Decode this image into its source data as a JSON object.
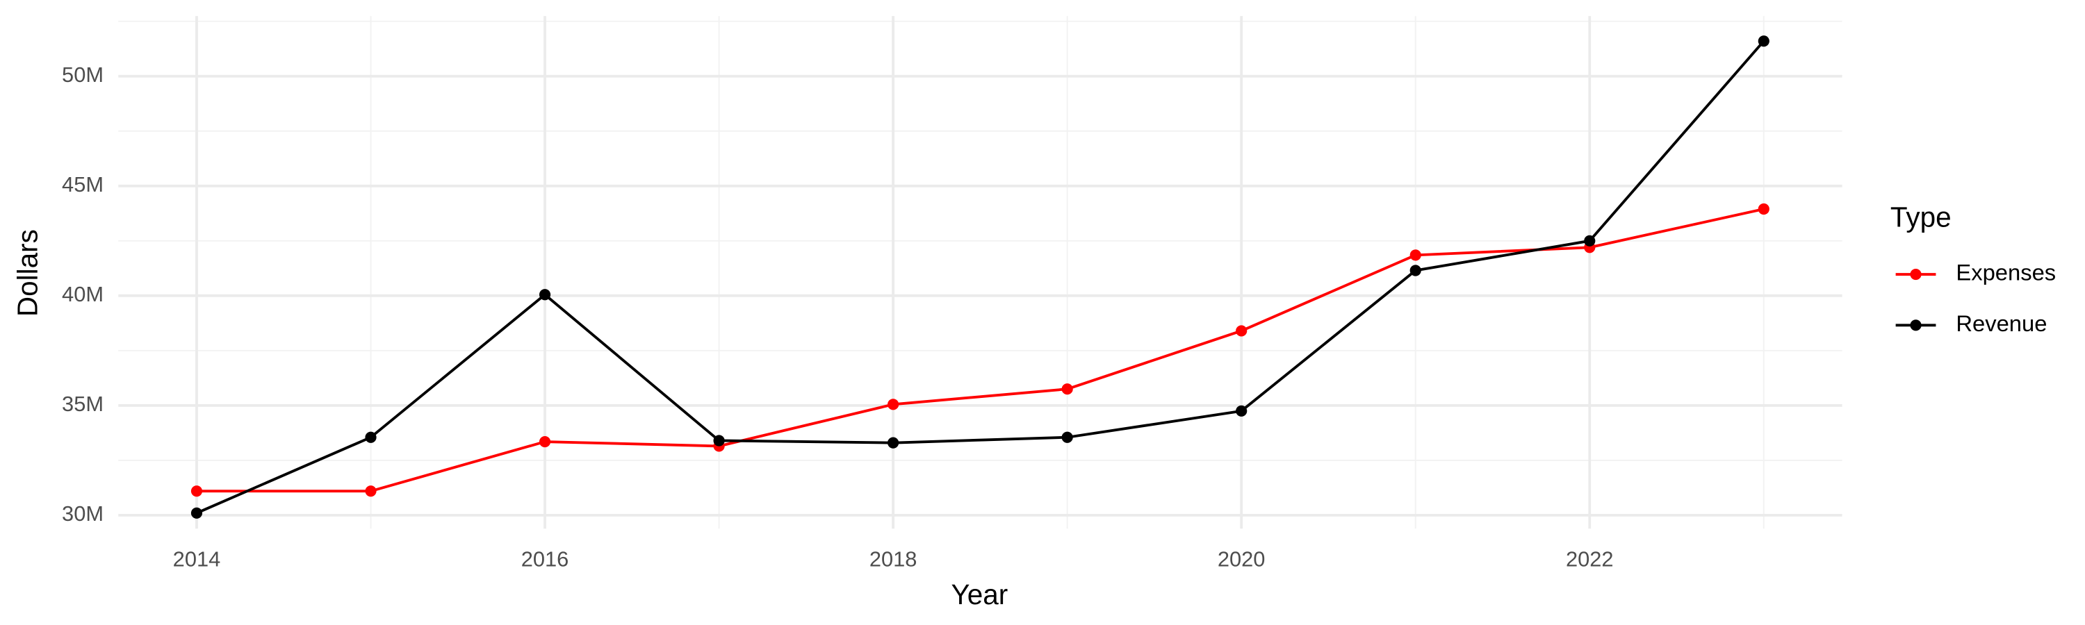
{
  "chart_data": {
    "type": "line",
    "x_label": "Year",
    "y_label": "Dollars",
    "legend_title": "Type",
    "legend_position": "right",
    "grid": true,
    "x": [
      2014,
      2015,
      2016,
      2017,
      2018,
      2019,
      2020,
      2021,
      2022,
      2023
    ],
    "series": [
      {
        "name": "Expenses",
        "color": "#ff0000",
        "values": [
          31100000,
          31100000,
          33350000,
          33150000,
          35050000,
          35750000,
          38400000,
          41850000,
          42200000,
          43950000
        ]
      },
      {
        "name": "Revenue",
        "color": "#000000",
        "values": [
          30100000,
          33550000,
          40050000,
          33400000,
          33300000,
          33550000,
          34750000,
          41150000,
          42500000,
          51600000
        ]
      }
    ],
    "xlim": [
      2013.55,
      2023.45
    ],
    "xticks": [
      2014,
      2016,
      2018,
      2020,
      2022
    ],
    "ylim": [
      29390000,
      52740000
    ],
    "yticks": [
      {
        "value": 30000000,
        "label": "30M"
      },
      {
        "value": 35000000,
        "label": "35M"
      },
      {
        "value": 40000000,
        "label": "40M"
      },
      {
        "value": 45000000,
        "label": "45M"
      },
      {
        "value": 50000000,
        "label": "50M"
      }
    ]
  }
}
